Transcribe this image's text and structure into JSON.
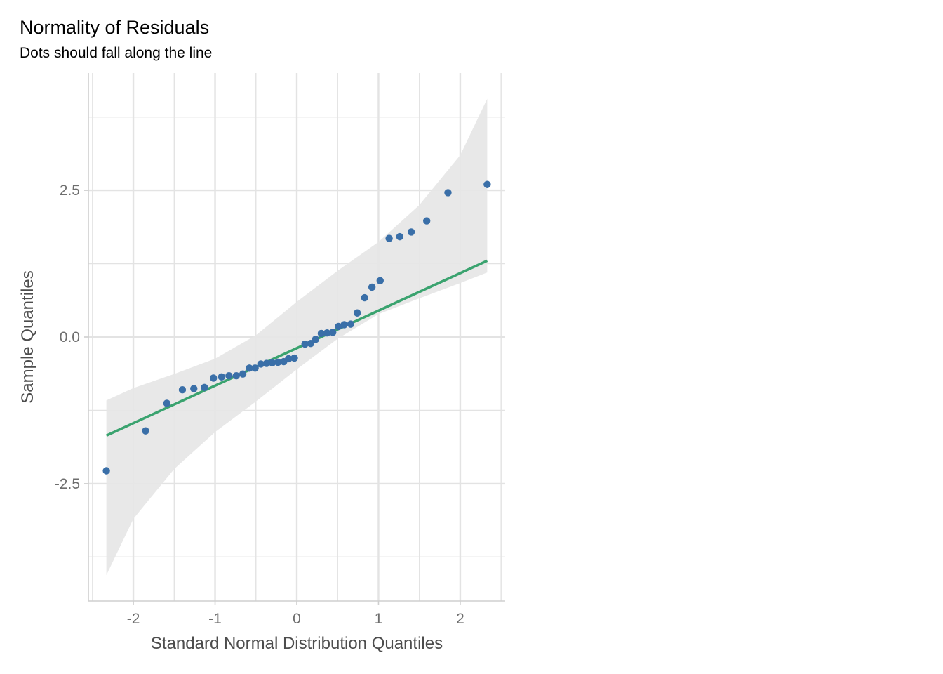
{
  "chart_data": {
    "type": "scatter",
    "title": "Normality of Residuals",
    "subtitle": "Dots should fall along the line",
    "xlabel": "Standard Normal Distribution Quantiles",
    "ylabel": "Sample Quantiles",
    "xlim": [
      -2.55,
      2.55
    ],
    "ylim": [
      -4.5,
      4.5
    ],
    "x_ticks": [
      -2,
      -1,
      0,
      1,
      2
    ],
    "x_tick_labels": [
      "-2",
      "-1",
      "0",
      "1",
      "2"
    ],
    "y_ticks": [
      -2.5,
      0,
      2.5
    ],
    "y_tick_labels": [
      "-2.5",
      "0.0",
      "2.5"
    ],
    "grid": true,
    "colors": {
      "points": "#3a6fa8",
      "line": "#3aa36f",
      "band": "#e6e6e6",
      "grid": "#e3e3e3"
    },
    "points": {
      "x": [
        -2.33,
        -1.85,
        -1.59,
        -1.4,
        -1.26,
        -1.13,
        -1.02,
        -0.92,
        -0.83,
        -0.74,
        -0.66,
        -0.58,
        -0.51,
        -0.44,
        -0.37,
        -0.3,
        -0.23,
        -0.16,
        -0.1,
        -0.03,
        0.1,
        0.17,
        0.23,
        0.3,
        0.37,
        0.44,
        0.51,
        0.58,
        0.66,
        0.74,
        0.83,
        0.92,
        1.02,
        1.13,
        1.26,
        1.4,
        1.59,
        1.85,
        2.33
      ],
      "y": [
        -2.28,
        -1.6,
        -1.13,
        -0.9,
        -0.88,
        -0.86,
        -0.7,
        -0.68,
        -0.66,
        -0.66,
        -0.63,
        -0.53,
        -0.53,
        -0.46,
        -0.45,
        -0.44,
        -0.43,
        -0.42,
        -0.37,
        -0.36,
        -0.12,
        -0.11,
        -0.04,
        0.06,
        0.07,
        0.08,
        0.18,
        0.21,
        0.22,
        0.41,
        0.67,
        0.85,
        0.96,
        1.68,
        1.71,
        1.79,
        1.98,
        2.46,
        2.6
      ]
    },
    "reference_line": {
      "x": [
        -2.33,
        2.33
      ],
      "y": [
        -1.68,
        1.3
      ]
    },
    "confidence_band": {
      "x": [
        -2.33,
        -2.0,
        -1.5,
        -1.0,
        -0.5,
        0.0,
        0.5,
        1.0,
        1.5,
        2.0,
        2.33
      ],
      "upper": [
        -1.08,
        -0.87,
        -0.63,
        -0.37,
        0.03,
        0.6,
        1.13,
        1.62,
        2.25,
        3.1,
        4.06
      ],
      "lower": [
        -4.06,
        -3.1,
        -2.25,
        -1.62,
        -1.1,
        -0.55,
        -0.03,
        0.39,
        0.66,
        0.92,
        1.1
      ]
    }
  }
}
